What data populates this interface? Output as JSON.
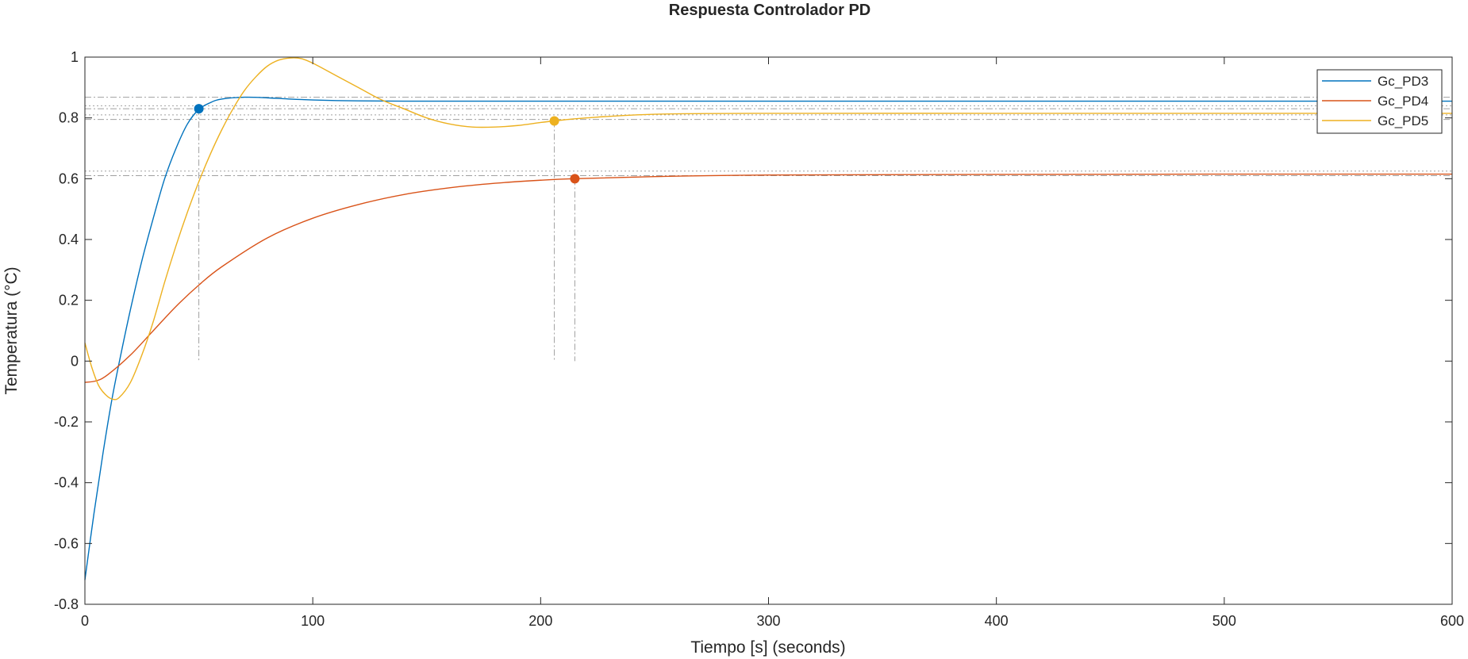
{
  "chart_data": {
    "type": "line",
    "title": "Respuesta Controlador PD",
    "xlabel": "Tiempo [s] (seconds)",
    "ylabel": "Temperatura (°C)",
    "xlim": [
      0,
      600
    ],
    "ylim": [
      -0.8,
      1
    ],
    "xticks": [
      "0",
      "100",
      "200",
      "300",
      "400",
      "500",
      "600"
    ],
    "yticks": [
      "-0.8",
      "-0.6",
      "-0.4",
      "-0.2",
      "0",
      "0.2",
      "0.4",
      "0.6",
      "0.8",
      "1"
    ],
    "grid": false,
    "legend_position": "top-right",
    "series": [
      {
        "name": "Gc_PD3",
        "color": "#0072BD",
        "x": [
          0,
          4,
          8,
          12,
          16,
          20,
          25,
          30,
          35,
          40,
          45,
          50,
          55,
          60,
          70,
          80,
          90,
          100,
          110,
          120,
          140,
          160,
          200,
          300,
          400,
          500,
          600
        ],
        "y": [
          -0.72,
          -0.5,
          -0.3,
          -0.12,
          0.03,
          0.17,
          0.33,
          0.47,
          0.6,
          0.7,
          0.78,
          0.828,
          0.85,
          0.862,
          0.868,
          0.866,
          0.862,
          0.859,
          0.857,
          0.856,
          0.855,
          0.855,
          0.855,
          0.855,
          0.855,
          0.855,
          0.855
        ],
        "marker": {
          "x": 50,
          "y": 0.83
        }
      },
      {
        "name": "Gc_PD4",
        "color": "#D95319",
        "x": [
          0,
          5,
          10,
          20,
          30,
          40,
          50,
          60,
          80,
          100,
          120,
          140,
          160,
          180,
          200,
          215,
          250,
          300,
          400,
          500,
          600
        ],
        "y": [
          -0.07,
          -0.065,
          -0.045,
          0.02,
          0.1,
          0.18,
          0.25,
          0.31,
          0.405,
          0.47,
          0.515,
          0.548,
          0.57,
          0.585,
          0.595,
          0.6,
          0.607,
          0.612,
          0.614,
          0.615,
          0.615
        ],
        "marker": {
          "x": 215,
          "y": 0.6
        }
      },
      {
        "name": "Gc_PD5",
        "color": "#EDB120",
        "x": [
          0,
          3,
          6,
          9,
          12,
          15,
          20,
          25,
          30,
          35,
          40,
          45,
          50,
          55,
          60,
          65,
          70,
          75,
          80,
          85,
          90,
          95,
          100,
          110,
          120,
          130,
          140,
          150,
          160,
          170,
          180,
          190,
          200,
          206,
          220,
          250,
          300,
          400,
          500,
          600
        ],
        "y": [
          0.06,
          -0.02,
          -0.08,
          -0.11,
          -0.125,
          -0.12,
          -0.07,
          0.02,
          0.13,
          0.26,
          0.38,
          0.49,
          0.59,
          0.68,
          0.76,
          0.83,
          0.89,
          0.935,
          0.97,
          0.99,
          0.997,
          0.995,
          0.98,
          0.94,
          0.9,
          0.86,
          0.83,
          0.8,
          0.78,
          0.77,
          0.77,
          0.775,
          0.785,
          0.79,
          0.8,
          0.812,
          0.815,
          0.815,
          0.815,
          0.815
        ],
        "marker": {
          "x": 206,
          "y": 0.79
        }
      }
    ],
    "reference_lines": {
      "horizontal": [
        0.868,
        0.84,
        0.83,
        0.81,
        0.795,
        0.625,
        0.61
      ],
      "vertical": [
        {
          "x": 50,
          "y_top": 0.83
        },
        {
          "x": 206,
          "y_top": 0.79
        },
        {
          "x": 215,
          "y_top": 0.6
        }
      ],
      "color": "#A0A0A0"
    }
  }
}
